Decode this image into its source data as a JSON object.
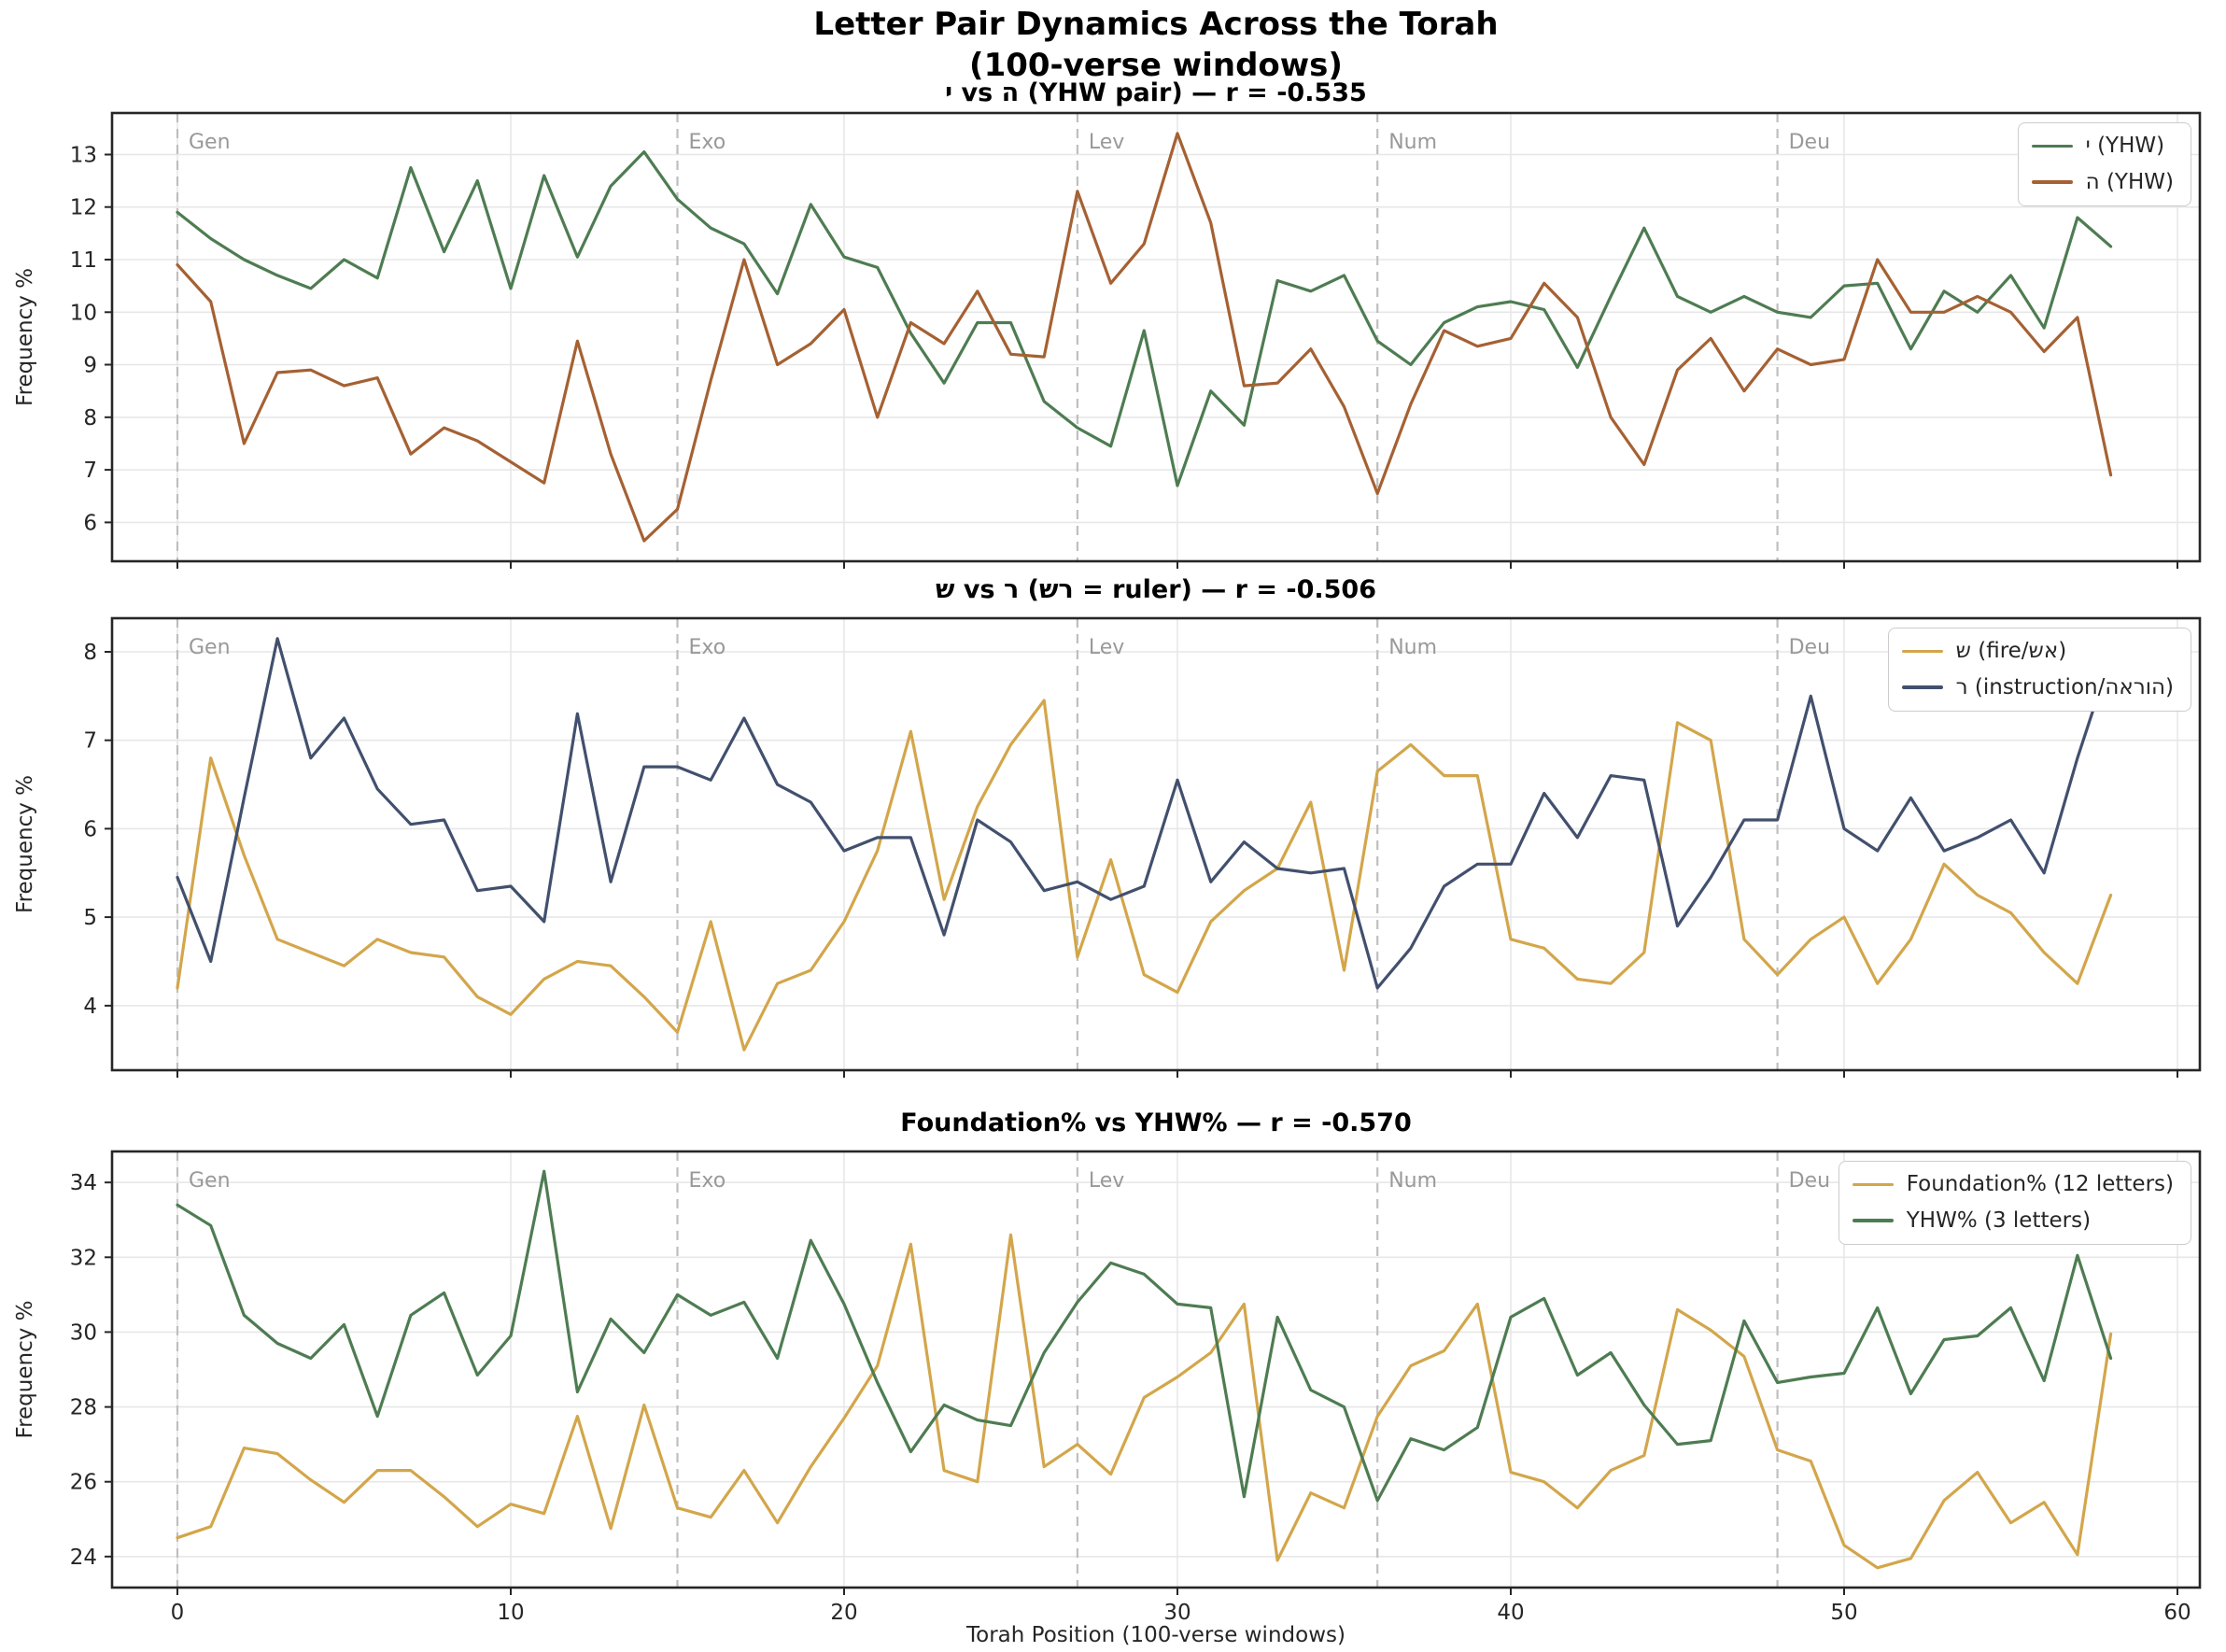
{
  "figure": {
    "title_line1": "Letter Pair Dynamics Across the Torah",
    "title_line2": "(100-verse windows)",
    "xlabel": "Torah Position (100-verse windows)",
    "ylabel": "Frequency %",
    "x_ticks": [
      0,
      10,
      20,
      30,
      40,
      50,
      60
    ],
    "book_markers": [
      {
        "label": "Gen",
        "x": 0
      },
      {
        "label": "Exo",
        "x": 15
      },
      {
        "label": "Lev",
        "x": 27
      },
      {
        "label": "Num",
        "x": 36
      },
      {
        "label": "Deu",
        "x": 48
      }
    ]
  },
  "colors": {
    "green": "#4e7c52",
    "sienna": "#a56133",
    "gold": "#d3a64b",
    "navy": "#42506e",
    "grid": "#e7e7e7",
    "spine": "#262626",
    "book_line": "#bfbfbf",
    "book_label": "#999999",
    "text": "#262626"
  },
  "chart_data": [
    {
      "type": "line",
      "title": "י vs ה (YHW pair) — r = -0.535",
      "correlation": -0.535,
      "xlabel": "",
      "ylabel": "Frequency %",
      "x_start": 0,
      "x_step": 1,
      "ylim": [
        5.26,
        13.79
      ],
      "yticks": [
        6,
        7,
        8,
        9,
        10,
        11,
        12,
        13
      ],
      "grid": true,
      "legend_position": "upper right",
      "series": [
        {
          "name": "י (YHW)",
          "color": "green",
          "values": [
            11.9,
            11.4,
            11.0,
            10.7,
            10.45,
            11.0,
            10.65,
            12.75,
            11.15,
            12.5,
            10.45,
            12.6,
            11.05,
            12.4,
            13.05,
            12.15,
            11.6,
            11.3,
            10.35,
            12.05,
            11.05,
            10.85,
            9.6,
            8.65,
            9.8,
            9.8,
            8.3,
            7.8,
            7.45,
            9.65,
            6.7,
            8.5,
            7.85,
            10.6,
            10.4,
            10.7,
            9.45,
            9.0,
            9.8,
            10.1,
            10.2,
            10.05,
            8.95,
            10.3,
            11.6,
            10.3,
            10.0,
            10.3,
            10.0,
            9.9,
            10.5,
            10.55,
            9.3,
            10.4,
            10.0,
            10.7,
            9.7,
            11.8,
            11.25
          ]
        },
        {
          "name": "ה (YHW)",
          "color": "sienna",
          "values": [
            10.9,
            10.2,
            7.5,
            8.85,
            8.9,
            8.6,
            8.75,
            7.3,
            7.8,
            7.55,
            7.15,
            6.75,
            9.45,
            7.3,
            5.65,
            6.25,
            8.7,
            11.0,
            9.0,
            9.4,
            10.05,
            8.0,
            9.8,
            9.4,
            10.4,
            9.2,
            9.15,
            12.3,
            10.55,
            11.3,
            13.4,
            11.7,
            8.6,
            8.65,
            9.3,
            8.2,
            6.55,
            8.25,
            9.65,
            9.35,
            9.5,
            10.55,
            9.9,
            8.0,
            7.1,
            8.9,
            9.5,
            8.5,
            9.3,
            9.0,
            9.1,
            11.0,
            10.0,
            10.0,
            10.3,
            10.0,
            9.25,
            9.9,
            6.9
          ]
        }
      ]
    },
    {
      "type": "line",
      "title": "ש vs ר (שר = ruler) — r = -0.506",
      "correlation": -0.506,
      "xlabel": "",
      "ylabel": "Frequency %",
      "x_start": 0,
      "x_step": 1,
      "ylim": [
        3.27,
        8.38
      ],
      "yticks": [
        4,
        5,
        6,
        7,
        8
      ],
      "grid": true,
      "legend_position": "upper right",
      "series": [
        {
          "name": "ש (fire/שא)",
          "color": "gold",
          "values": [
            4.2,
            6.8,
            5.7,
            4.75,
            4.6,
            4.45,
            4.75,
            4.6,
            4.55,
            4.1,
            3.9,
            4.3,
            4.5,
            4.45,
            4.1,
            3.7,
            4.95,
            3.5,
            4.25,
            4.4,
            4.95,
            5.75,
            7.1,
            5.2,
            6.25,
            6.95,
            7.45,
            4.55,
            5.65,
            4.35,
            4.15,
            4.95,
            5.3,
            5.55,
            6.3,
            4.4,
            6.65,
            6.95,
            6.6,
            6.6,
            4.75,
            4.65,
            4.3,
            4.25,
            4.6,
            7.2,
            7.0,
            4.75,
            4.35,
            4.75,
            5.0,
            4.25,
            4.75,
            5.6,
            5.25,
            5.05,
            4.6,
            4.25,
            5.25
          ]
        },
        {
          "name": "ר (instruction/הארוה)",
          "color": "navy",
          "values": [
            5.45,
            4.5,
            6.35,
            8.15,
            6.8,
            7.25,
            6.45,
            6.05,
            6.1,
            5.3,
            5.35,
            4.95,
            7.3,
            5.4,
            6.7,
            6.7,
            6.55,
            7.25,
            6.5,
            6.3,
            5.75,
            5.9,
            5.9,
            4.8,
            6.1,
            5.85,
            5.3,
            5.4,
            5.2,
            5.35,
            6.55,
            5.4,
            5.85,
            5.55,
            5.5,
            5.55,
            4.2,
            4.65,
            5.35,
            5.6,
            5.6,
            6.4,
            5.9,
            6.6,
            6.55,
            4.9,
            5.45,
            6.1,
            6.1,
            7.5,
            6.0,
            5.75,
            6.35,
            5.75,
            5.9,
            6.1,
            5.5,
            6.8,
            7.95
          ]
        }
      ]
    },
    {
      "type": "line",
      "title": "Foundation% vs YHW% — r = -0.570",
      "correlation": -0.57,
      "xlabel": "Torah Position (100-verse windows)",
      "ylabel": "Frequency %",
      "x_start": 0,
      "x_step": 1,
      "ylim": [
        23.17,
        34.83
      ],
      "yticks": [
        24,
        26,
        28,
        30,
        32,
        34
      ],
      "grid": true,
      "legend_position": "upper right",
      "series": [
        {
          "name": "Foundation% (12 letters)",
          "color": "gold",
          "values": [
            24.5,
            24.8,
            26.9,
            26.75,
            26.05,
            25.45,
            26.3,
            26.3,
            25.6,
            24.8,
            25.4,
            25.15,
            27.75,
            24.75,
            28.05,
            25.3,
            25.05,
            26.3,
            24.9,
            26.4,
            27.7,
            29.1,
            32.35,
            26.3,
            26.0,
            32.6,
            26.4,
            27.0,
            26.2,
            28.25,
            28.8,
            29.45,
            30.75,
            23.9,
            25.7,
            25.3,
            27.75,
            29.1,
            29.5,
            30.75,
            26.25,
            26.0,
            25.3,
            26.3,
            26.7,
            30.6,
            30.05,
            29.35,
            26.85,
            26.55,
            24.3,
            23.7,
            23.95,
            25.5,
            26.25,
            24.9,
            25.45,
            24.05,
            29.95
          ]
        },
        {
          "name": "YHW% (3 letters)",
          "color": "green",
          "values": [
            33.4,
            32.85,
            30.45,
            29.7,
            29.3,
            30.2,
            27.75,
            30.45,
            31.05,
            28.85,
            29.9,
            34.3,
            28.4,
            30.35,
            29.45,
            31.0,
            30.45,
            30.8,
            29.3,
            32.45,
            30.75,
            28.65,
            26.8,
            28.05,
            27.65,
            27.5,
            29.45,
            30.8,
            31.85,
            31.55,
            30.75,
            30.65,
            25.6,
            30.4,
            28.45,
            28.0,
            25.5,
            27.15,
            26.85,
            27.45,
            30.4,
            30.9,
            28.85,
            29.45,
            28.05,
            27.0,
            27.1,
            30.3,
            28.65,
            28.8,
            28.9,
            30.65,
            28.35,
            29.8,
            29.9,
            30.65,
            28.7,
            32.05,
            29.3
          ]
        }
      ]
    }
  ]
}
